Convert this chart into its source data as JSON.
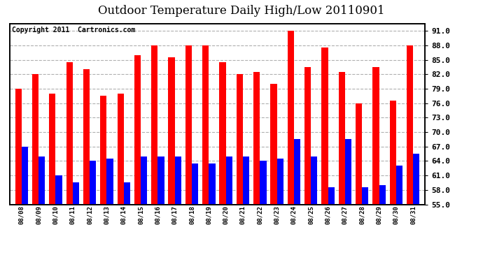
{
  "title": "Outdoor Temperature Daily High/Low 20110901",
  "copyright": "Copyright 2011  Cartronics.com",
  "dates": [
    "08/08",
    "08/09",
    "08/10",
    "08/11",
    "08/12",
    "08/13",
    "08/14",
    "08/15",
    "08/16",
    "08/17",
    "08/18",
    "08/19",
    "08/20",
    "08/21",
    "08/22",
    "08/23",
    "08/24",
    "08/25",
    "08/26",
    "08/27",
    "08/28",
    "08/29",
    "08/30",
    "08/31"
  ],
  "highs": [
    79.0,
    82.0,
    78.0,
    84.5,
    83.0,
    77.5,
    78.0,
    86.0,
    88.0,
    85.5,
    88.0,
    88.0,
    84.5,
    82.0,
    82.5,
    80.0,
    91.0,
    83.5,
    87.5,
    82.5,
    76.0,
    83.5,
    76.5,
    88.0
  ],
  "lows": [
    67.0,
    65.0,
    61.0,
    59.5,
    64.0,
    64.5,
    59.5,
    65.0,
    65.0,
    65.0,
    63.5,
    63.5,
    65.0,
    65.0,
    64.0,
    64.5,
    68.5,
    65.0,
    58.5,
    68.5,
    58.5,
    59.0,
    63.0,
    65.5
  ],
  "high_color": "#ff0000",
  "low_color": "#0000ff",
  "background_color": "#ffffff",
  "grid_color": "#b0b0b0",
  "ylim_min": 55.0,
  "ylim_max": 92.5,
  "yticks": [
    55.0,
    58.0,
    61.0,
    64.0,
    67.0,
    70.0,
    73.0,
    76.0,
    79.0,
    82.0,
    85.0,
    88.0,
    91.0
  ],
  "bar_width": 0.38,
  "title_fontsize": 12,
  "copyright_fontsize": 7
}
